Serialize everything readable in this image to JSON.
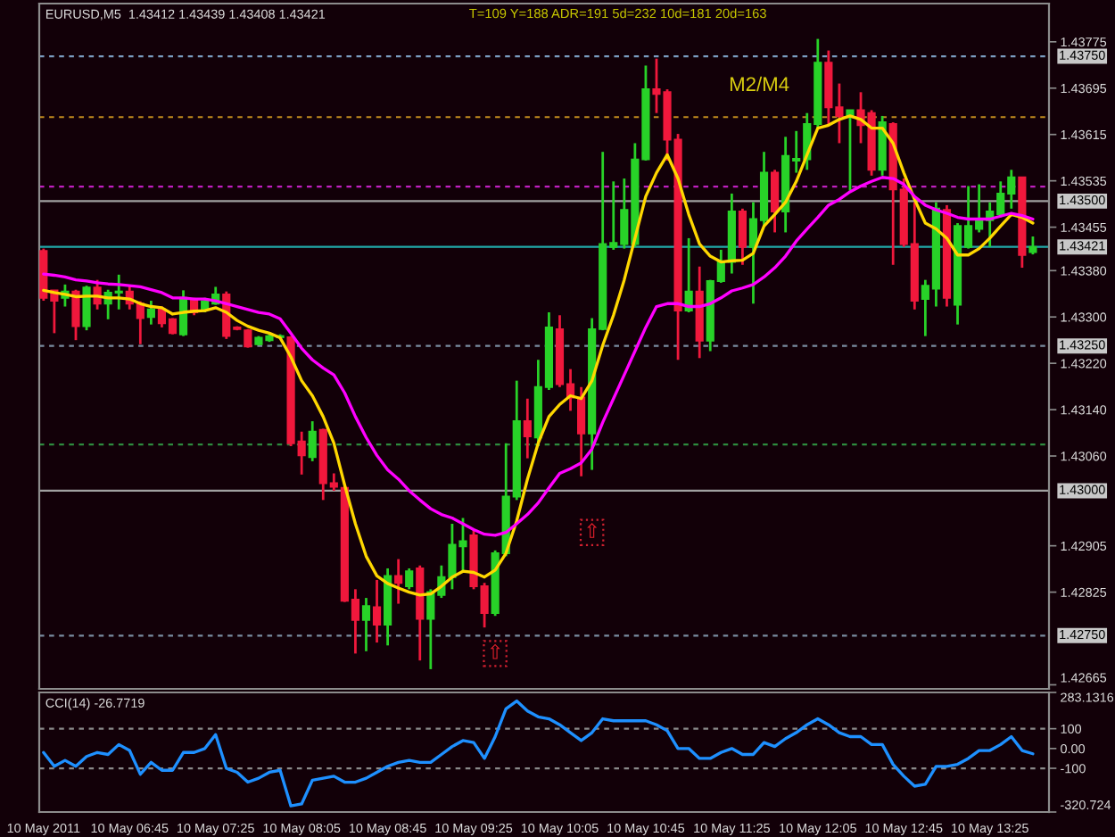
{
  "chart_data": [
    {
      "type": "candlestick",
      "title": "EURUSD,M5  1.43412 1.43439 1.43408 1.43421",
      "annotations": [
        "T=109 Y=188 ADR=191 5d=232 10d=181 20d=163",
        "M2/M4",
        {
          "text": "⇧",
          "y": 1.42719
        },
        {
          "text": "⇧",
          "y": 1.42928
        }
      ],
      "categories": [
        null,
        null,
        null,
        null,
        null,
        null,
        null,
        null,
        null,
        null,
        null,
        null,
        null,
        null,
        null,
        null,
        null,
        null,
        null,
        null,
        null,
        null,
        null,
        null,
        null,
        null,
        null,
        null,
        null,
        null,
        null,
        null,
        null,
        null,
        null,
        null,
        null,
        null,
        null,
        null,
        null,
        null,
        null,
        null,
        null,
        null,
        null,
        null,
        null,
        null,
        null,
        null,
        null,
        null,
        null,
        null,
        null,
        null,
        null,
        null,
        null,
        null,
        null,
        null,
        null,
        null,
        null,
        null,
        null,
        null,
        null,
        null,
        null,
        null,
        null,
        null,
        null,
        null,
        null,
        null,
        null,
        null,
        null,
        null,
        null,
        null,
        null,
        null,
        null,
        null,
        null,
        null,
        null
      ],
      "ohlc": [
        [
          1.43414,
          1.43418,
          1.43328,
          1.43333
        ],
        [
          1.43346,
          1.43346,
          1.43272,
          1.43328
        ],
        [
          1.43333,
          1.43356,
          1.43318,
          1.43344
        ],
        [
          1.43344,
          1.43347,
          1.4326,
          1.43284
        ],
        [
          1.43284,
          1.43354,
          1.43277,
          1.43351
        ],
        [
          1.43351,
          1.43364,
          1.43313,
          1.43323
        ],
        [
          1.43323,
          1.43347,
          1.43296,
          1.43342
        ],
        [
          1.43342,
          1.43373,
          1.43313,
          1.43344
        ],
        [
          1.43344,
          1.43354,
          1.43313,
          1.43323
        ],
        [
          1.43323,
          1.43327,
          1.43253,
          1.43298
        ],
        [
          1.433,
          1.43328,
          1.43287,
          1.43313
        ],
        [
          1.43313,
          1.43318,
          1.43282,
          1.43289
        ],
        [
          1.43296,
          1.43298,
          1.4327,
          1.43272
        ],
        [
          1.4327,
          1.43346,
          1.43267,
          1.43333
        ],
        [
          1.43328,
          1.43333,
          1.43303,
          1.43308
        ],
        [
          1.43313,
          1.43333,
          1.43308,
          1.43327
        ],
        [
          1.43323,
          1.43352,
          1.43321,
          1.43339
        ],
        [
          1.43339,
          1.43344,
          1.43262,
          1.43267
        ],
        [
          1.43282,
          1.43284,
          1.43277,
          1.43279
        ],
        [
          1.43277,
          1.43279,
          1.43247,
          1.43249
        ],
        [
          1.43253,
          1.43267,
          1.43251,
          1.43264
        ],
        [
          1.4326,
          1.4327,
          1.43257,
          1.43267
        ],
        [
          1.43265,
          1.4327,
          1.43262,
          1.43267
        ],
        [
          1.43265,
          1.43267,
          1.43077,
          1.43082
        ],
        [
          1.43085,
          1.43102,
          1.43028,
          1.43061
        ],
        [
          1.43058,
          1.4312,
          1.43051,
          1.43102
        ],
        [
          1.43105,
          1.43107,
          1.42984,
          1.43013
        ],
        [
          1.43013,
          1.4303,
          1.43,
          1.43007
        ],
        [
          1.43005,
          1.4301,
          1.42808,
          1.4281
        ],
        [
          1.42812,
          1.4283,
          1.42719,
          1.42777
        ],
        [
          1.42777,
          1.42815,
          1.42723,
          1.42801
        ],
        [
          1.42799,
          1.42846,
          1.42738,
          1.42769
        ],
        [
          1.42769,
          1.42866,
          1.42733,
          1.42853
        ],
        [
          1.42853,
          1.42882,
          1.42805,
          1.42841
        ],
        [
          1.42835,
          1.42866,
          1.4283,
          1.42861
        ],
        [
          1.42866,
          1.42871,
          1.42707,
          1.42779
        ],
        [
          1.42779,
          1.4283,
          1.42692,
          1.42825
        ],
        [
          1.4282,
          1.42871,
          1.42815,
          1.42851
        ],
        [
          1.42851,
          1.42943,
          1.4283,
          1.42907
        ],
        [
          1.42904,
          1.42953,
          1.42861,
          1.42913
        ],
        [
          1.42923,
          1.42933,
          1.4283,
          1.42835
        ],
        [
          1.42835,
          1.42841,
          1.42764,
          1.42789
        ],
        [
          1.42789,
          1.42897,
          1.42784,
          1.42892
        ],
        [
          1.42892,
          1.43082,
          1.42887,
          1.4299
        ],
        [
          1.4299,
          1.4319,
          1.42984,
          1.4312
        ],
        [
          1.4312,
          1.43159,
          1.43056,
          1.43094
        ],
        [
          1.43092,
          1.43226,
          1.43077,
          1.43179
        ],
        [
          1.43179,
          1.43308,
          1.43174,
          1.43282
        ],
        [
          1.43279,
          1.43303,
          1.43179,
          1.43184
        ],
        [
          1.43184,
          1.4321,
          1.43138,
          1.43161
        ],
        [
          1.43161,
          1.43179,
          1.43025,
          1.43099
        ],
        [
          1.43099,
          1.43298,
          1.43036,
          1.43279
        ],
        [
          1.43279,
          1.43585,
          1.43277,
          1.43426
        ],
        [
          1.43421,
          1.43534,
          1.43416,
          1.43428
        ],
        [
          1.43426,
          1.43539,
          1.43418,
          1.43485
        ],
        [
          1.43426,
          1.436,
          1.43421,
          1.43572
        ],
        [
          1.43572,
          1.43734,
          1.4357,
          1.43693
        ],
        [
          1.43693,
          1.43746,
          1.43652,
          1.43685
        ],
        [
          1.43688,
          1.43693,
          1.4357,
          1.43606
        ],
        [
          1.43606,
          1.43616,
          1.43226,
          1.43311
        ],
        [
          1.43311,
          1.43436,
          1.43308,
          1.43344
        ],
        [
          1.43344,
          1.43387,
          1.43229,
          1.43259
        ],
        [
          1.43259,
          1.43364,
          1.43241,
          1.43362
        ],
        [
          1.43362,
          1.43416,
          1.43359,
          1.43395
        ],
        [
          1.43395,
          1.43513,
          1.43375,
          1.43482
        ],
        [
          1.43482,
          1.43487,
          1.4339,
          1.43421
        ],
        [
          1.43421,
          1.43498,
          1.43323,
          1.43469
        ],
        [
          1.43467,
          1.43585,
          1.43457,
          1.43549
        ],
        [
          1.43549,
          1.43554,
          1.43446,
          1.43482
        ],
        [
          1.43482,
          1.43611,
          1.43446,
          1.43578
        ],
        [
          1.4357,
          1.43621,
          1.43549,
          1.43573
        ],
        [
          1.43572,
          1.43652,
          1.43554,
          1.43633
        ],
        [
          1.43633,
          1.4378,
          1.43626,
          1.43739
        ],
        [
          1.43739,
          1.4376,
          1.43631,
          1.43662
        ],
        [
          1.43662,
          1.43703,
          1.436,
          1.43647
        ],
        [
          1.43645,
          1.43657,
          1.43518,
          1.43657
        ],
        [
          1.43657,
          1.43688,
          1.436,
          1.43631
        ],
        [
          1.43652,
          1.43657,
          1.43544,
          1.43554
        ],
        [
          1.43554,
          1.43647,
          1.43544,
          1.43636
        ],
        [
          1.43633,
          1.43636,
          1.4339,
          1.4352
        ],
        [
          1.4352,
          1.43539,
          1.43421,
          1.43426
        ],
        [
          1.43426,
          1.43498,
          1.43313,
          1.43328
        ],
        [
          1.43331,
          1.43364,
          1.43267,
          1.43354
        ],
        [
          1.43349,
          1.43498,
          1.43318,
          1.43487
        ],
        [
          1.43485,
          1.43493,
          1.43318,
          1.43333
        ],
        [
          1.43321,
          1.43462,
          1.43287,
          1.43457
        ],
        [
          1.43421,
          1.43526,
          1.43418,
          1.43457
        ],
        [
          1.43452,
          1.43529,
          1.43446,
          1.43467
        ],
        [
          1.43467,
          1.43498,
          1.43421,
          1.43482
        ],
        [
          1.43477,
          1.43534,
          1.43472,
          1.43513
        ],
        [
          1.43513,
          1.43554,
          1.43487,
          1.43541
        ],
        [
          1.43541,
          1.43541,
          1.43385,
          1.43407
        ],
        [
          1.43412,
          1.43439,
          1.43408,
          1.43421
        ]
      ],
      "colors": [
        "#f0183c",
        "#f0183c",
        "#28d228",
        "#f0183c",
        "#28d228",
        "#f0183c",
        "#28d228",
        "#28d228",
        "#f0183c",
        "#f0183c",
        "#28d228",
        "#f0183c",
        "#f0183c",
        "#28d228",
        "#f0183c",
        "#28d228",
        "#28d228",
        "#f0183c",
        "#f0183c",
        "#f0183c",
        "#28d228",
        "#28d228",
        "#28d228",
        "#f0183c",
        "#f0183c",
        "#28d228",
        "#f0183c",
        "#f0183c",
        "#f0183c",
        "#f0183c",
        "#28d228",
        "#f0183c",
        "#28d228",
        "#f0183c",
        "#28d228",
        "#f0183c",
        "#28d228",
        "#28d228",
        "#28d228",
        "#28d228",
        "#f0183c",
        "#f0183c",
        "#28d228",
        "#28d228",
        "#28d228",
        "#f0183c",
        "#28d228",
        "#28d228",
        "#f0183c",
        "#f0183c",
        "#f0183c",
        "#28d228",
        "#28d228",
        "#28d228",
        "#28d228",
        "#28d228",
        "#28d228",
        "#f0183c",
        "#f0183c",
        "#f0183c",
        "#28d228",
        "#f0183c",
        "#28d228",
        "#28d228",
        "#28d228",
        "#f0183c",
        "#28d228",
        "#28d228",
        "#f0183c",
        "#28d228",
        "#28d228",
        "#28d228",
        "#28d228",
        "#f0183c",
        "#f0183c",
        "#28d228",
        "#f0183c",
        "#f0183c",
        "#28d228",
        "#f0183c",
        "#f0183c",
        "#f0183c",
        "#28d228",
        "#28d228",
        "#f0183c",
        "#28d228",
        "#28d228",
        "#28d228",
        "#28d228",
        "#28d228",
        "#28d228",
        "#f0183c",
        "#28d228"
      ],
      "series": [
        {
          "type": "line",
          "color": "#ffd700",
          "values": [
            1.43346,
            1.43342,
            1.43339,
            1.43335,
            1.43336,
            1.43336,
            1.43333,
            1.43333,
            1.43331,
            1.43323,
            1.43318,
            1.43316,
            1.43305,
            1.43308,
            1.4331,
            1.43311,
            1.43316,
            1.43308,
            1.43294,
            1.43284,
            1.43277,
            1.43272,
            1.43264,
            1.43231,
            1.4319,
            1.43164,
            1.43128,
            1.43082,
            1.4301,
            1.42943,
            1.42887,
            1.42853,
            1.4284,
            1.42832,
            1.42825,
            1.4282,
            1.42822,
            1.42835,
            1.42851,
            1.42861,
            1.42859,
            1.42851,
            1.42863,
            1.42892,
            1.42948,
            1.4302,
            1.43082,
            1.43128,
            1.43149,
            1.43164,
            1.43159,
            1.4319,
            1.43251,
            1.43303,
            1.43364,
            1.43436,
            1.43508,
            1.43549,
            1.4358,
            1.43539,
            1.43477,
            1.43426,
            1.43405,
            1.43395,
            1.43397,
            1.43398,
            1.4341,
            1.43457,
            1.43477,
            1.43498,
            1.43534,
            1.4358,
            1.43626,
            1.43631,
            1.43641,
            1.43647,
            1.43641,
            1.43626,
            1.43626,
            1.436,
            1.43549,
            1.43503,
            1.43462,
            1.43452,
            1.43436,
            1.43407,
            1.43407,
            1.43418,
            1.43436,
            1.43457,
            1.43477,
            1.43472,
            1.43462
          ]
        },
        {
          "type": "line",
          "color": "#ff00ff",
          "values": [
            1.43374,
            1.43372,
            1.43369,
            1.43364,
            1.43362,
            1.43359,
            1.43357,
            1.43356,
            1.43354,
            1.43352,
            1.43347,
            1.43342,
            1.43333,
            1.43333,
            1.43331,
            1.43331,
            1.43328,
            1.43323,
            1.43318,
            1.43313,
            1.43308,
            1.43305,
            1.43297,
            1.43272,
            1.43246,
            1.43226,
            1.43212,
            1.432,
            1.43169,
            1.43128,
            1.43092,
            1.43061,
            1.43036,
            1.4302,
            1.43,
            1.42984,
            1.42969,
            1.42959,
            1.42953,
            1.42943,
            1.42933,
            1.42925,
            1.42923,
            1.42928,
            1.42943,
            1.42959,
            1.42979,
            1.43005,
            1.4303,
            1.43038,
            1.43048,
            1.43072,
            1.43118,
            1.43159,
            1.432,
            1.43241,
            1.43282,
            1.43318,
            1.43323,
            1.43323,
            1.43318,
            1.43318,
            1.43323,
            1.43333,
            1.43345,
            1.4335,
            1.43356,
            1.43369,
            1.43385,
            1.43405,
            1.43431,
            1.43452,
            1.43472,
            1.43493,
            1.43503,
            1.43516,
            1.43526,
            1.43534,
            1.43541,
            1.43539,
            1.43529,
            1.43508,
            1.43493,
            1.43485,
            1.43479,
            1.43472,
            1.43469,
            1.43469,
            1.43469,
            1.43474,
            1.43479,
            1.43475,
            1.43469
          ]
        }
      ],
      "ylim": [
        1.42658,
        1.43841
      ],
      "yticks": [
        1.43775,
        1.43695,
        1.43615,
        1.43535,
        1.43455,
        {
          "value": 1.4338,
          "label": "1.43380"
        },
        {
          "value": 1.433,
          "label": "1.43300"
        },
        {
          "value": 1.4322,
          "label": "1.43220"
        },
        {
          "value": 1.4314,
          "label": "1.43140"
        },
        {
          "value": 1.4306,
          "label": "1.43060"
        },
        1.42905,
        1.42825,
        1.42665
      ],
      "ref_lines": [
        {
          "axis": "y",
          "value": 1.4375,
          "label": "1.43750",
          "color": "#7a9cc0",
          "line_style": "dashed"
        },
        {
          "axis": "y",
          "value": 1.43645,
          "color": "#c08a1e",
          "line_style": "dashed"
        },
        {
          "axis": "y",
          "value": 1.43525,
          "color": "#c020c0",
          "line_style": "dashed"
        },
        {
          "axis": "y",
          "value": 1.435,
          "label": "1.43500",
          "color": "#a0a0a0",
          "line_style": "solid"
        },
        {
          "axis": "y",
          "value": 1.43421,
          "label": "1.43421",
          "color": "#20a8a8",
          "line_style": "solid"
        },
        {
          "axis": "y",
          "value": 1.4325,
          "label": "1.43250",
          "color": "#7a8ca0",
          "line_style": "dashed"
        },
        {
          "axis": "y",
          "value": 1.4308,
          "color": "#2e8b3e",
          "line_style": "dashed"
        },
        {
          "axis": "y",
          "value": 1.43,
          "label": "1.43000",
          "color": "#a0a0a0",
          "line_style": "solid"
        },
        {
          "axis": "y",
          "value": 1.4275,
          "label": "1.42750",
          "color": "#7a8ca0",
          "line_style": "dashed"
        }
      ],
      "tick_labels": "y"
    },
    {
      "type": "line",
      "title": "CCI(14) -26.7719",
      "categories": [
        "10 May 2011",
        null,
        null,
        null,
        null,
        null,
        null,
        null,
        "10 May 06:45",
        null,
        null,
        null,
        null,
        null,
        null,
        null,
        "10 May 07:25",
        null,
        null,
        null,
        null,
        null,
        null,
        null,
        "10 May 08:05",
        null,
        null,
        null,
        null,
        null,
        null,
        null,
        "10 May 08:45",
        null,
        null,
        null,
        null,
        null,
        null,
        null,
        "10 May 09:25",
        null,
        null,
        null,
        null,
        null,
        null,
        null,
        "10 May 10:05",
        null,
        null,
        null,
        null,
        null,
        null,
        null,
        "10 May 10:45",
        null,
        null,
        null,
        null,
        null,
        null,
        null,
        "10 May 11:25",
        null,
        null,
        null,
        null,
        null,
        null,
        null,
        "10 May 12:05",
        null,
        null,
        null,
        null,
        null,
        null,
        null,
        "10 May 12:45",
        null,
        null,
        null,
        null,
        null,
        null,
        null,
        "10 May 13:25",
        null,
        null,
        null,
        null
      ],
      "series": [
        {
          "color": "#1e90ff",
          "values": [
            -20,
            -90,
            -60,
            -90,
            -40,
            -20,
            -30,
            20,
            -10,
            -130,
            -70,
            -110,
            -110,
            -20,
            -20,
            0,
            70,
            -100,
            -120,
            -170,
            -150,
            -120,
            -110,
            -290,
            -280,
            -160,
            -150,
            -140,
            -170,
            -170,
            -150,
            -120,
            -90,
            -70,
            -60,
            -70,
            -70,
            -30,
            10,
            40,
            30,
            -50,
            60,
            200,
            240,
            190,
            160,
            150,
            120,
            80,
            40,
            80,
            150,
            140,
            140,
            140,
            140,
            120,
            90,
            0,
            0,
            -50,
            -50,
            -20,
            0,
            -30,
            -30,
            30,
            10,
            50,
            80,
            120,
            150,
            120,
            80,
            60,
            60,
            20,
            20,
            -80,
            -140,
            -190,
            -180,
            -90,
            -90,
            -80,
            -50,
            -10,
            -10,
            20,
            60,
            -10,
            -26.7719
          ]
        }
      ],
      "ylim": [
        -320.724,
        283.1316
      ],
      "yticks": [
        283.1316,
        100,
        {
          "value": 0,
          "label": "0.00"
        },
        -100,
        -320.724
      ],
      "ref_lines": [
        {
          "axis": "y",
          "value": 100,
          "color": "#8a8a8a",
          "line_style": "dashed"
        },
        {
          "axis": "y",
          "value": -100,
          "color": "#8a8a8a",
          "line_style": "dashed"
        }
      ]
    }
  ]
}
